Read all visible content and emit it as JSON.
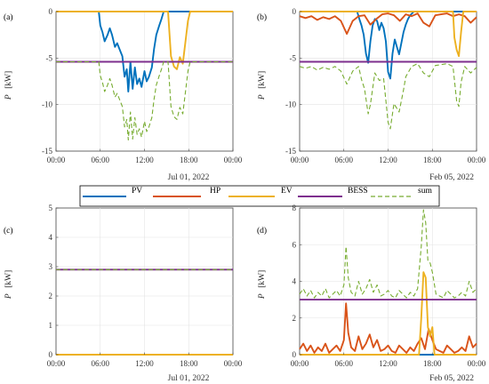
{
  "colors": {
    "PV": "#0072BD",
    "HP": "#D95319",
    "EV": "#EDB120",
    "BESS": "#7E2F8E",
    "sum": "#77AC30",
    "grid": "#e4e4e4",
    "axis": "#444444"
  },
  "legend": {
    "position": "center, between top and bottom rows",
    "entries": [
      {
        "series": "PV",
        "label": "PV",
        "dashed": false
      },
      {
        "series": "HP",
        "label": "HP",
        "dashed": false
      },
      {
        "series": "EV",
        "label": "EV",
        "dashed": false
      },
      {
        "series": "BESS",
        "label": "BESS",
        "dashed": false
      },
      {
        "series": "sum",
        "label": "sum",
        "dashed": true
      }
    ]
  },
  "chart_data": [
    {
      "type": "line",
      "panel": "(a)",
      "date_label": "Jul 01, 2022",
      "ylabel": "P",
      "yunit": "[kW]",
      "xlim": [
        0,
        24
      ],
      "ylim": [
        -15,
        0
      ],
      "xticks": [
        "00:00",
        "06:00",
        "12:00",
        "18:00",
        "00:00"
      ],
      "yticks": [
        "0",
        "-5",
        "-10",
        "-15"
      ],
      "ytick_values": [
        0,
        -5,
        -10,
        -15
      ],
      "grid": true,
      "series": [
        {
          "name": "HP",
          "x": [
            0,
            24
          ],
          "y": [
            0,
            0
          ]
        },
        {
          "name": "PV",
          "x": [
            0,
            5.8,
            6.0,
            6.3,
            6.6,
            7.0,
            7.3,
            7.6,
            8.0,
            8.3,
            8.7,
            9.0,
            9.3,
            9.6,
            9.8,
            10.1,
            10.4,
            10.7,
            11.0,
            11.3,
            11.6,
            12.0,
            12.3,
            12.6,
            13.0,
            13.3,
            13.6,
            14.0,
            14.3,
            14.6,
            24
          ],
          "y": [
            0,
            0,
            -1.5,
            -2.2,
            -3.2,
            -2.5,
            -1.8,
            -2.5,
            -3.8,
            -3.4,
            -4.2,
            -4.8,
            -7.0,
            -6.2,
            -8.6,
            -5.4,
            -8.3,
            -6.0,
            -7.8,
            -7.2,
            -8.1,
            -6.4,
            -7.5,
            -7.0,
            -6.0,
            -4.0,
            -2.5,
            -1.5,
            -0.8,
            0,
            0
          ]
        },
        {
          "name": "EV",
          "x": [
            0,
            15.2,
            15.6,
            16.0,
            16.4,
            16.8,
            17.2,
            17.6,
            17.9,
            18.2,
            24
          ],
          "y": [
            0,
            0,
            -4.8,
            -5.9,
            -6.2,
            -4.9,
            -5.6,
            -3.0,
            -1.0,
            0,
            0
          ]
        },
        {
          "name": "BESS",
          "x": [
            0,
            24
          ],
          "y": [
            -5.4,
            -5.4
          ]
        },
        {
          "name": "sum",
          "x": [
            0,
            5.8,
            6.0,
            6.3,
            6.6,
            7.0,
            7.3,
            7.6,
            8.0,
            8.3,
            8.7,
            9.0,
            9.3,
            9.6,
            9.8,
            10.1,
            10.4,
            10.7,
            11.0,
            11.3,
            11.6,
            12.0,
            12.3,
            12.6,
            13.0,
            13.3,
            13.6,
            14.0,
            14.3,
            14.6,
            15.2,
            15.6,
            16.0,
            16.4,
            16.8,
            17.2,
            17.6,
            17.9,
            18.2,
            24
          ],
          "y": [
            -5.4,
            -5.4,
            -6.9,
            -7.6,
            -8.6,
            -7.9,
            -7.2,
            -7.9,
            -9.2,
            -8.8,
            -9.6,
            -10.2,
            -12.4,
            -11.6,
            -13.8,
            -10.8,
            -13.7,
            -11.4,
            -13.2,
            -12.6,
            -13.5,
            -11.8,
            -12.9,
            -12.4,
            -11.4,
            -9.4,
            -7.9,
            -6.9,
            -6.2,
            -5.4,
            -5.4,
            -10.2,
            -11.3,
            -11.6,
            -10.3,
            -11.0,
            -8.4,
            -6.4,
            -5.4,
            -5.4
          ]
        }
      ]
    },
    {
      "type": "line",
      "panel": "(b)",
      "date_label": "Feb 05, 2022",
      "ylabel": "P",
      "yunit": "[kW]",
      "xlim": [
        0,
        24
      ],
      "ylim": [
        -15,
        0
      ],
      "xticks": [
        "00:00",
        "06:00",
        "12:00",
        "18:00",
        "00:00"
      ],
      "yticks": [
        "0",
        "-5",
        "-10",
        "-15"
      ],
      "ytick_values": [
        0,
        -5,
        -10,
        -15
      ],
      "grid": true,
      "series": [
        {
          "name": "PV",
          "x": [
            0,
            7.8,
            8.1,
            8.4,
            8.7,
            9.0,
            9.3,
            9.6,
            9.9,
            10.2,
            10.5,
            10.8,
            11.1,
            11.4,
            11.7,
            12.0,
            12.3,
            12.6,
            12.9,
            13.2,
            13.5,
            13.8,
            14.1,
            14.4,
            14.7,
            15.0,
            15.5,
            24
          ],
          "y": [
            0,
            0,
            -0.8,
            -1.5,
            -2.5,
            -4.5,
            -5.5,
            -3.2,
            -1.5,
            -0.8,
            -1.0,
            -2.0,
            -1.2,
            -1.8,
            -3.2,
            -6.5,
            -7.2,
            -4.5,
            -3.0,
            -3.8,
            -4.6,
            -3.4,
            -2.2,
            -1.4,
            -0.8,
            -0.4,
            0,
            0
          ]
        },
        {
          "name": "HP",
          "x": [
            0,
            0.8,
            1.6,
            2.4,
            3.2,
            4.0,
            4.8,
            5.6,
            6.4,
            7.2,
            8.0,
            8.8,
            9.6,
            10.4,
            11.2,
            12.0,
            12.8,
            13.6,
            14.4,
            15.2,
            16.0,
            16.8,
            17.6,
            18.4,
            19.2,
            20.0,
            20.8,
            21.6,
            22.4,
            23.2,
            24
          ],
          "y": [
            -0.5,
            -0.7,
            -0.5,
            -0.9,
            -0.6,
            -0.8,
            -0.5,
            -1.0,
            -2.4,
            -1.0,
            -0.5,
            -0.4,
            -1.4,
            -0.8,
            -0.3,
            -0.2,
            -0.4,
            -1.0,
            -0.3,
            -0.5,
            -0.2,
            -1.2,
            -1.6,
            -0.4,
            -0.3,
            -0.2,
            -0.5,
            -0.3,
            -0.5,
            -1.2,
            -0.6
          ]
        },
        {
          "name": "EV",
          "x": [
            0,
            20.8,
            21.0,
            21.3,
            21.6,
            21.9,
            22.2,
            24
          ],
          "y": [
            0,
            0,
            -2.8,
            -4.1,
            -4.8,
            -2.2,
            0,
            0
          ]
        },
        {
          "name": "BESS",
          "x": [
            0,
            24
          ],
          "y": [
            -5.4,
            -5.4
          ]
        },
        {
          "name": "sum",
          "x": [
            0,
            0.8,
            1.6,
            2.4,
            3.2,
            4.0,
            4.8,
            5.6,
            6.4,
            7.2,
            8.0,
            8.4,
            8.8,
            9.3,
            9.6,
            10.2,
            10.8,
            11.4,
            12.0,
            12.3,
            12.8,
            13.5,
            14.1,
            14.4,
            15.2,
            16.0,
            16.8,
            17.6,
            18.4,
            19.2,
            20.0,
            20.8,
            21.3,
            21.6,
            21.9,
            22.4,
            23.2,
            24
          ],
          "y": [
            -5.9,
            -6.1,
            -5.9,
            -6.3,
            -6.0,
            -6.2,
            -5.9,
            -6.4,
            -7.8,
            -6.4,
            -5.9,
            -7.3,
            -8.3,
            -11.0,
            -10.0,
            -6.6,
            -7.4,
            -7.2,
            -11.9,
            -12.6,
            -9.9,
            -10.8,
            -8.4,
            -7.0,
            -5.9,
            -5.6,
            -6.6,
            -7.0,
            -5.8,
            -5.7,
            -5.6,
            -5.9,
            -9.6,
            -10.2,
            -7.6,
            -5.9,
            -6.6,
            -6.0
          ]
        }
      ]
    },
    {
      "type": "line",
      "panel": "(c)",
      "date_label": "Jul 01, 2022",
      "ylabel": "P",
      "yunit": "[kW]",
      "xlim": [
        0,
        24
      ],
      "ylim": [
        0,
        5
      ],
      "xticks": [
        "00:00",
        "06:00",
        "12:00",
        "18:00",
        "00:00"
      ],
      "yticks": [
        "0",
        "1",
        "2",
        "3",
        "4",
        "5"
      ],
      "ytick_values": [
        0,
        1,
        2,
        3,
        4,
        5
      ],
      "grid": true,
      "series": [
        {
          "name": "PV",
          "x": [
            0,
            24
          ],
          "y": [
            0,
            0
          ]
        },
        {
          "name": "HP",
          "x": [
            0,
            24
          ],
          "y": [
            0,
            0
          ]
        },
        {
          "name": "EV",
          "x": [
            0,
            24
          ],
          "y": [
            0,
            0
          ]
        },
        {
          "name": "BESS",
          "x": [
            0,
            24
          ],
          "y": [
            2.9,
            2.9
          ]
        },
        {
          "name": "sum",
          "x": [
            0,
            24
          ],
          "y": [
            2.9,
            2.9
          ]
        }
      ]
    },
    {
      "type": "line",
      "panel": "(d)",
      "date_label": "Feb 05, 2022",
      "ylabel": "P",
      "yunit": "[kW]",
      "xlim": [
        0,
        24
      ],
      "ylim": [
        0,
        8
      ],
      "xticks": [
        "00:00",
        "06:00",
        "12:00",
        "18:00",
        "00:00"
      ],
      "yticks": [
        "0",
        "2",
        "4",
        "6",
        "8"
      ],
      "ytick_values": [
        0,
        2,
        4,
        6,
        8
      ],
      "grid": true,
      "series": [
        {
          "name": "PV",
          "x": [
            0,
            24
          ],
          "y": [
            0,
            0
          ]
        },
        {
          "name": "HP",
          "x": [
            0,
            0.5,
            1.0,
            1.5,
            2.0,
            2.5,
            3.0,
            3.5,
            4.0,
            4.5,
            5.0,
            5.5,
            6.0,
            6.3,
            6.6,
            7.0,
            7.5,
            8.0,
            8.5,
            9.0,
            9.5,
            10.0,
            10.5,
            11.0,
            11.5,
            12.0,
            12.5,
            13.0,
            13.5,
            14.0,
            14.5,
            15.0,
            15.5,
            16.0,
            16.5,
            17.0,
            17.5,
            18.0,
            18.5,
            19.0,
            19.5,
            20.0,
            20.5,
            21.0,
            21.5,
            22.0,
            22.5,
            23.0,
            23.5,
            24
          ],
          "y": [
            0.3,
            0.6,
            0.2,
            0.5,
            0.1,
            0.4,
            0.2,
            0.6,
            0.1,
            0.3,
            0.5,
            0.2,
            0.8,
            2.8,
            1.2,
            0.4,
            0.2,
            1.0,
            0.3,
            0.6,
            1.1,
            0.4,
            0.8,
            0.2,
            0.3,
            0.5,
            0.2,
            0.1,
            0.5,
            0.3,
            0.1,
            0.4,
            0.2,
            0.6,
            0.9,
            0.3,
            1.4,
            0.8,
            0.3,
            0.2,
            0.1,
            0.5,
            0.3,
            0.1,
            0.2,
            0.4,
            0.2,
            1.0,
            0.4,
            0.6
          ]
        },
        {
          "name": "EV",
          "x": [
            0,
            16.2,
            16.5,
            16.8,
            17.1,
            17.4,
            17.7,
            18.0,
            18.3,
            24
          ],
          "y": [
            0,
            0,
            2.0,
            4.5,
            4.2,
            1.5,
            1.0,
            1.5,
            0,
            0
          ]
        },
        {
          "name": "BESS",
          "x": [
            0,
            24
          ],
          "y": [
            3.0,
            3.0
          ]
        },
        {
          "name": "sum",
          "x": [
            0,
            0.5,
            1.0,
            1.5,
            2.0,
            2.5,
            3.0,
            3.5,
            4.0,
            4.5,
            5.0,
            5.5,
            6.0,
            6.3,
            6.6,
            7.0,
            7.5,
            8.0,
            8.5,
            9.0,
            9.5,
            10.0,
            10.5,
            11.0,
            11.5,
            12.0,
            12.5,
            13.0,
            13.5,
            14.0,
            14.5,
            15.0,
            15.5,
            16.0,
            16.5,
            16.8,
            17.1,
            17.4,
            17.7,
            18.0,
            18.5,
            19.0,
            19.5,
            20.0,
            20.5,
            21.0,
            21.5,
            22.0,
            22.5,
            23.0,
            23.5,
            24
          ],
          "y": [
            3.3,
            3.6,
            3.2,
            3.5,
            3.1,
            3.4,
            3.2,
            3.6,
            3.1,
            3.3,
            3.5,
            3.2,
            3.8,
            5.9,
            4.2,
            3.4,
            3.2,
            4.0,
            3.3,
            3.6,
            4.1,
            3.4,
            3.8,
            3.2,
            3.3,
            3.5,
            3.2,
            3.1,
            3.5,
            3.3,
            3.1,
            3.4,
            3.2,
            3.6,
            5.9,
            7.9,
            7.2,
            5.1,
            5.0,
            4.5,
            3.3,
            3.2,
            3.1,
            3.5,
            3.3,
            3.1,
            3.2,
            3.4,
            3.2,
            4.0,
            3.4,
            3.6
          ]
        }
      ]
    }
  ]
}
